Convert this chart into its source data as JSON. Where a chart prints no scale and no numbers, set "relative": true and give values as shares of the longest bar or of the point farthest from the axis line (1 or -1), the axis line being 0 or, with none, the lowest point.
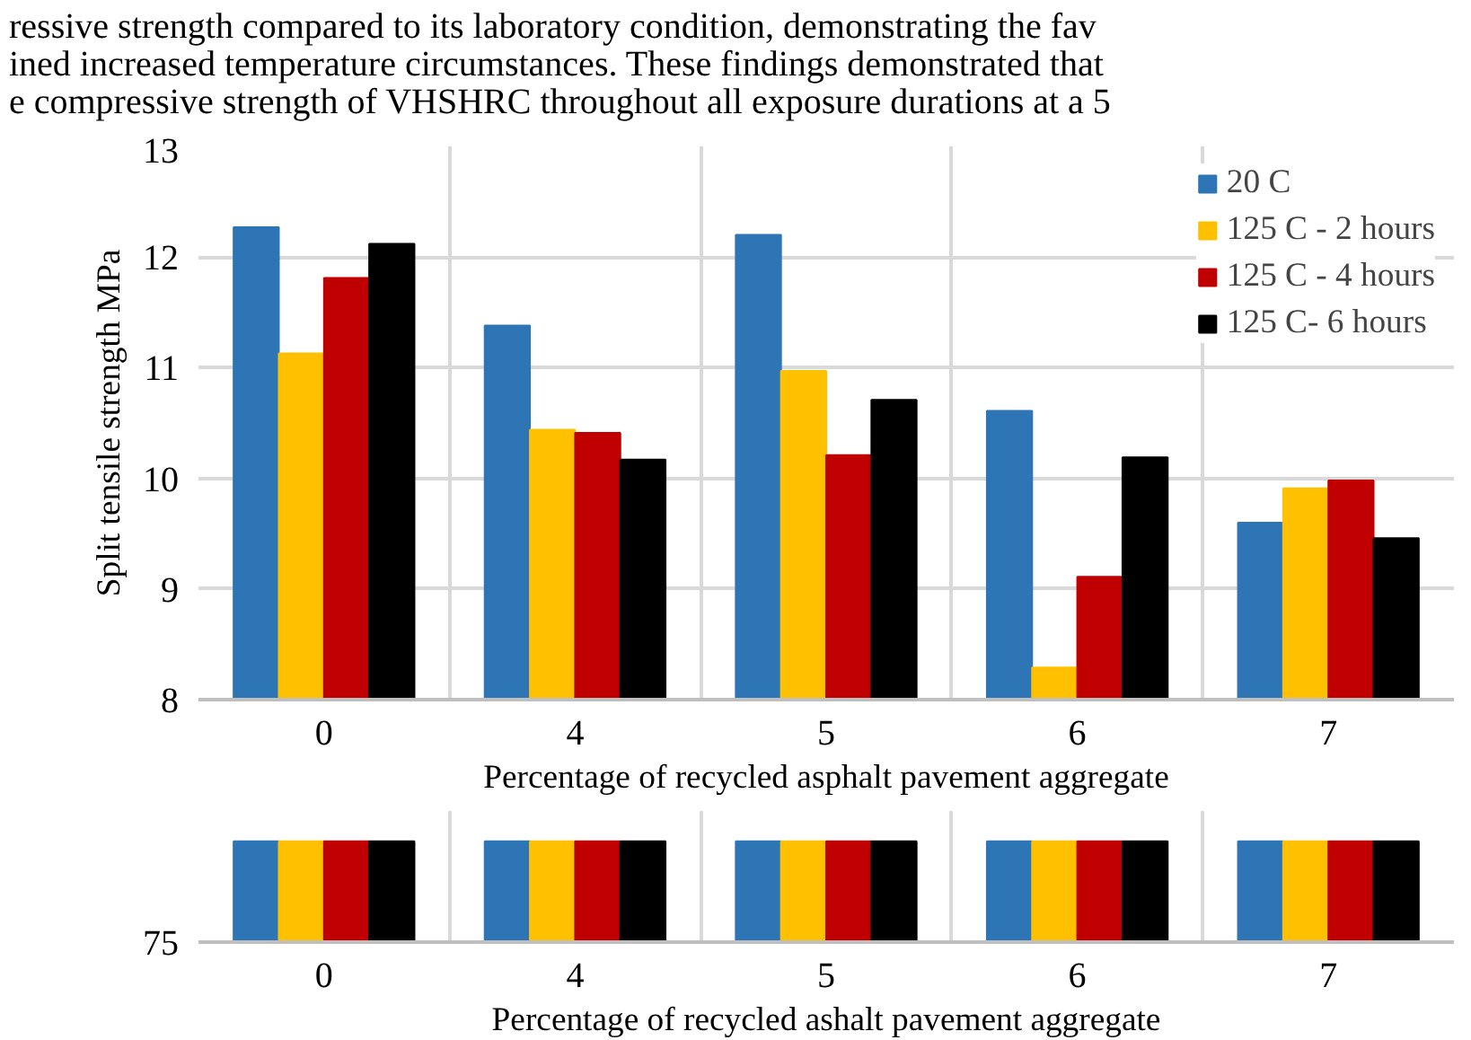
{
  "chart_data": [
    {
      "type": "bar",
      "annotations": [
        "ressive strength compared to its laboratory condition, demonstrating the fav",
        "ined increased temperature circumstances. These findings demonstrated that",
        "e compressive strength of VHSHRC throughout all exposure durations at a 5"
      ],
      "xlabel": "Percentage of recycled asphalt pavement aggregate",
      "ylabel": "Split tensile strength MPa",
      "categories": [
        "0",
        "4",
        "5",
        "6",
        "7"
      ],
      "series": [
        {
          "name": "20 C",
          "color": "#2e75b6",
          "values": [
            12.27,
            11.38,
            12.2,
            10.61,
            9.6
          ]
        },
        {
          "name": "125 C - 2 hours",
          "color": "#ffc000",
          "values": [
            11.13,
            10.44,
            10.97,
            8.29,
            9.91
          ]
        },
        {
          "name": "125 C - 4 hours",
          "color": "#c00000",
          "values": [
            11.81,
            10.41,
            10.21,
            9.11,
            9.98
          ]
        },
        {
          "name": "125 C- 6 hours",
          "color": "#000000",
          "values": [
            12.12,
            10.17,
            10.71,
            10.19,
            9.46
          ]
        }
      ],
      "ylim": [
        8,
        13
      ],
      "yticks": [
        8,
        9,
        10,
        11,
        12,
        13
      ],
      "grid": true,
      "legend": "top right"
    },
    {
      "type": "bar",
      "relative": true,
      "annotations": [
        "75"
      ],
      "xlabel": "Percentage of recycled ashalt pavement aggregate",
      "categories": [
        "0",
        "4",
        "5",
        "6",
        "7"
      ],
      "series": [
        {
          "color": "#2e75b6",
          "values": [
            1,
            1,
            1,
            1,
            1
          ]
        },
        {
          "color": "#ffc000",
          "values": [
            1,
            1,
            1,
            1,
            1
          ]
        },
        {
          "color": "#c00000",
          "values": [
            1,
            1,
            1,
            1,
            1
          ]
        },
        {
          "color": "#000000",
          "values": [
            1,
            1,
            1,
            1,
            1
          ]
        }
      ],
      "grid": "x"
    }
  ]
}
